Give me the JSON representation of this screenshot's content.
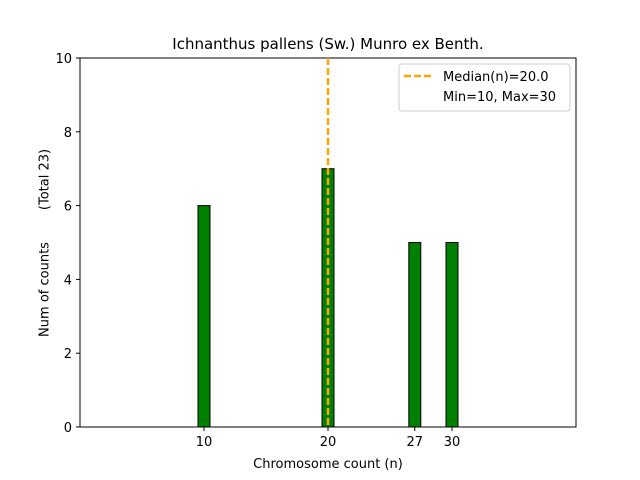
{
  "chart_data": {
    "type": "bar",
    "title": "Ichnanthus pallens (Sw.) Munro ex Benth.",
    "xlabel": "Chromosome count (n)",
    "ylabel": "Num of counts",
    "ylabel_total": "(Total 23)",
    "x": [
      10,
      20,
      27,
      30
    ],
    "values": [
      6,
      7,
      5,
      5
    ],
    "xlim": [
      0,
      40
    ],
    "ylim": [
      0,
      10
    ],
    "xticks": [
      "10",
      "20",
      "27",
      "30"
    ],
    "yticks": [
      "0",
      "2",
      "4",
      "6",
      "8",
      "10"
    ],
    "median_line": {
      "value": 20.0,
      "label": "Median(n)=20.0"
    },
    "range_text": "Min=10, Max=30",
    "legend_position": "top-right",
    "colors": {
      "bar": "#008000",
      "bar_edge": "#000000",
      "median": "#FFA500"
    }
  }
}
